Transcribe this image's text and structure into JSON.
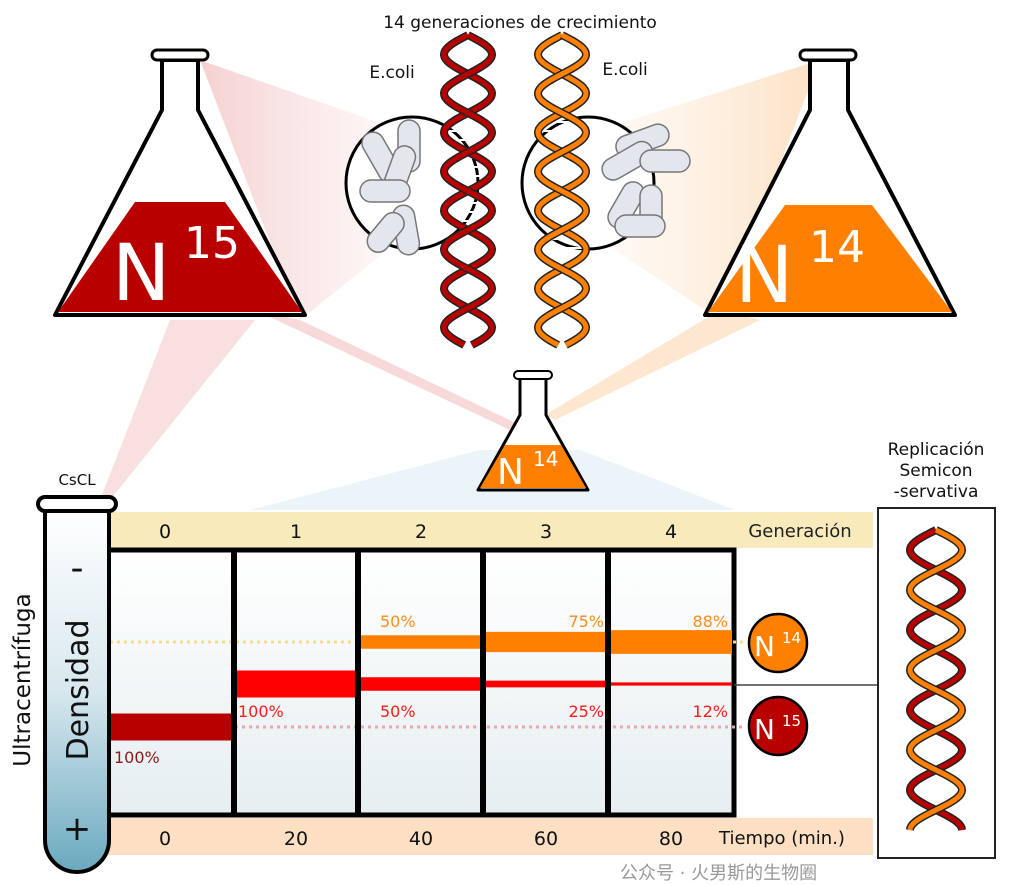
{
  "title": "14 generaciones de crecimiento",
  "left_flask": {
    "isotope": "N",
    "mass": "15",
    "bacteria_label": "E.coli"
  },
  "right_flask": {
    "isotope": "N",
    "mass": "14",
    "bacteria_label": "E.coli"
  },
  "center_flask": {
    "isotope": "N",
    "mass": "14"
  },
  "tube": {
    "label": "CsCL",
    "minus": "-",
    "axis_label": "Densidad",
    "plus": "+",
    "side_label": "Ultracentrífuga"
  },
  "generation": {
    "label": "Generación",
    "values": [
      "0",
      "1",
      "2",
      "3",
      "4"
    ]
  },
  "time": {
    "label": "Tiempo (min.)",
    "values": [
      "0",
      "20",
      "40",
      "60",
      "80"
    ]
  },
  "lanes": [
    {
      "n15": "100%",
      "hybrid": null,
      "n14": null
    },
    {
      "n15": null,
      "hybrid": "100%",
      "n14": null
    },
    {
      "n15": null,
      "hybrid": "50%",
      "n14": "50%"
    },
    {
      "n15": null,
      "hybrid": "25%",
      "n14": "75%"
    },
    {
      "n15": null,
      "hybrid": "12%",
      "n14": "88%"
    }
  ],
  "legend": {
    "n14": {
      "isotope": "N",
      "mass": "14"
    },
    "n15": {
      "isotope": "N",
      "mass": "15"
    }
  },
  "replication_box": {
    "title_lines": [
      "Replicación",
      "Semicon",
      "-servativa"
    ]
  },
  "watermark": "公众号 · 火男斯的生物圈",
  "colors": {
    "n15_dark": "#b80000",
    "hybrid_red": "#ff0000",
    "n14_orange": "#ff8000",
    "generation_band": "#f8eabb",
    "time_band": "#fde0c4",
    "tube_fluid": "#6aa9bf"
  }
}
